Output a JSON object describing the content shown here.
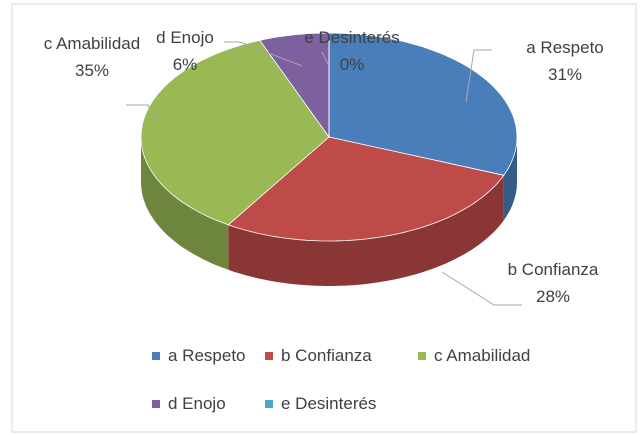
{
  "chart_data": {
    "type": "pie3d",
    "categories": [
      "a Respeto",
      "b Confianza",
      "c Amabilidad",
      "d Enojo",
      "e Desinterés"
    ],
    "values": [
      31,
      28,
      35,
      6,
      0
    ],
    "value_labels": [
      "31%",
      "28%",
      "35%",
      "6%",
      "0%"
    ],
    "colors": [
      "#4a7ebb",
      "#be4b48",
      "#98b954",
      "#7d60a0",
      "#46aac5"
    ],
    "legend": "bottom"
  }
}
